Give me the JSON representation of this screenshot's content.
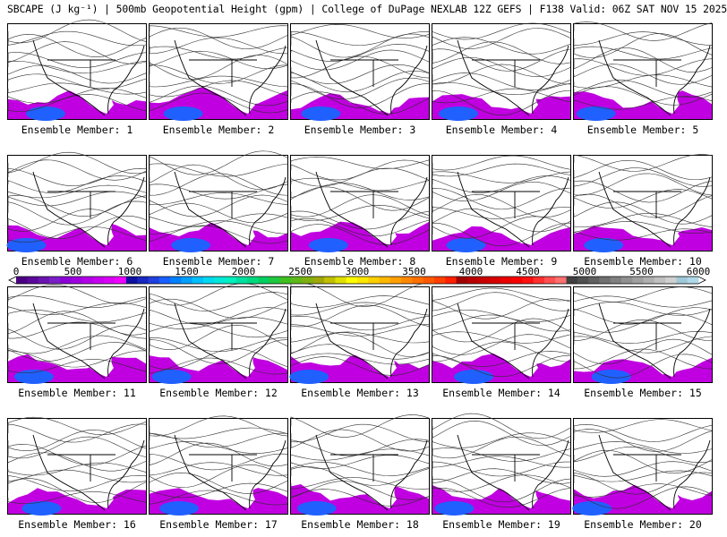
{
  "title": "SBCAPE (J kg⁻¹) | 500mb Geopotential Height (gpm) | College of DuPage NEXLAB 12Z GEFS | F138 Valid: 06Z SAT NOV 15 2025",
  "panels": [
    {
      "label": "Ensemble Member: 1"
    },
    {
      "label": "Ensemble Member: 2"
    },
    {
      "label": "Ensemble Member: 3"
    },
    {
      "label": "Ensemble Member: 4"
    },
    {
      "label": "Ensemble Member: 5"
    },
    {
      "label": "Ensemble Member: 6"
    },
    {
      "label": "Ensemble Member: 7"
    },
    {
      "label": "Ensemble Member: 8"
    },
    {
      "label": "Ensemble Member: 9"
    },
    {
      "label": "Ensemble Member: 10"
    },
    {
      "label": "Ensemble Member: 11"
    },
    {
      "label": "Ensemble Member: 12"
    },
    {
      "label": "Ensemble Member: 13"
    },
    {
      "label": "Ensemble Member: 14"
    },
    {
      "label": "Ensemble Member: 15"
    },
    {
      "label": "Ensemble Member: 16"
    },
    {
      "label": "Ensemble Member: 17"
    },
    {
      "label": "Ensemble Member: 18"
    },
    {
      "label": "Ensemble Member: 19"
    },
    {
      "label": "Ensemble Member: 20"
    }
  ],
  "colorbar": {
    "ticks": [
      "0",
      "500",
      "1000",
      "1500",
      "2000",
      "2500",
      "3000",
      "3500",
      "4000",
      "4500",
      "5000",
      "5500",
      "6000"
    ],
    "colors": [
      "#4b0082",
      "#5a0a9a",
      "#6a14b0",
      "#7a1ec8",
      "#8c00d8",
      "#a000e0",
      "#b400e8",
      "#c800f0",
      "#dc00f8",
      "#f000ff",
      "#1010a0",
      "#1828c0",
      "#2040e0",
      "#1860ff",
      "#0080ff",
      "#00a0ff",
      "#00c0ff",
      "#00d8f0",
      "#00e8d8",
      "#00f0c0",
      "#00e0a0",
      "#00d880",
      "#00d060",
      "#20c840",
      "#40c020",
      "#60b818",
      "#80b010",
      "#a0a808",
      "#c0c000",
      "#e0e000",
      "#ffff00",
      "#ffe800",
      "#ffd000",
      "#ffb800",
      "#ffa000",
      "#ff8800",
      "#ff7000",
      "#ff5800",
      "#ff4000",
      "#ff2000",
      "#a00000",
      "#b80000",
      "#c80000",
      "#d80000",
      "#e80000",
      "#f80000",
      "#ff1010",
      "#ff3030",
      "#ff5050",
      "#ff7070",
      "#404040",
      "#505050",
      "#606060",
      "#707070",
      "#808080",
      "#909090",
      "#a0a0a0",
      "#b0b0b0",
      "#c0c0c0",
      "#d0d0d0",
      "#a0c8d8",
      "#b0d8e8"
    ]
  }
}
